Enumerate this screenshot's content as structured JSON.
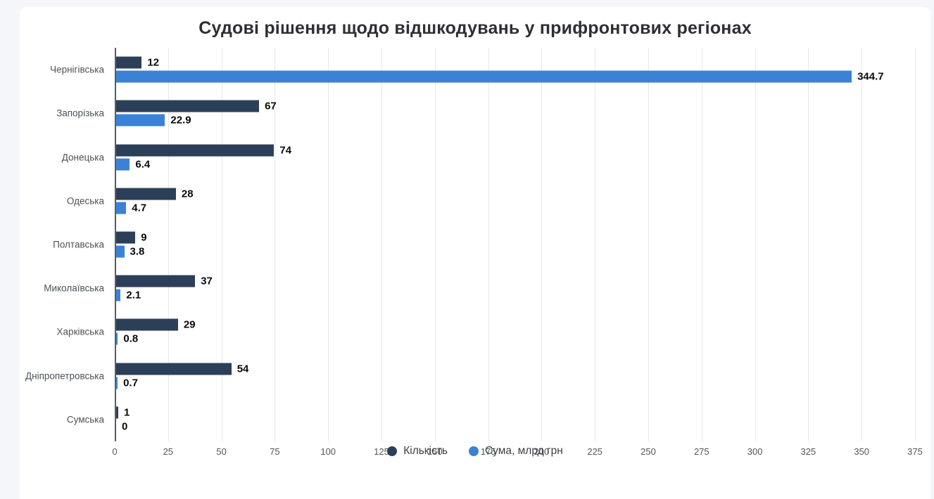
{
  "page": {
    "background_color": "#f5f6f9",
    "card_color": "#ffffff"
  },
  "chart_data": {
    "type": "bar",
    "orientation": "horizontal",
    "title": "Судові рішення щодо відшкодувань у прифронтових регіонах",
    "categories": [
      "Чернігівська",
      "Запорізька",
      "Донецька",
      "Одеська",
      "Полтавська",
      "Миколаївська",
      "Харківська",
      "Дніпропетровська",
      "Сумська"
    ],
    "series": [
      {
        "name": "Кількість",
        "color": "#2c3f58",
        "values": [
          12,
          67,
          74,
          28,
          9,
          37,
          29,
          54,
          1
        ]
      },
      {
        "name": "Сума, млрд грн",
        "color": "#3b82d6",
        "values": [
          344.7,
          22.9,
          6.4,
          4.7,
          3.8,
          2.1,
          0.8,
          0.7,
          0
        ]
      }
    ],
    "value_labels": true,
    "xlim": [
      0,
      375
    ],
    "x_ticks": [
      0,
      25,
      50,
      75,
      100,
      125,
      150,
      175,
      200,
      225,
      250,
      275,
      300,
      325,
      350,
      375
    ],
    "grid": "vertical",
    "legend_position": "bottom"
  }
}
